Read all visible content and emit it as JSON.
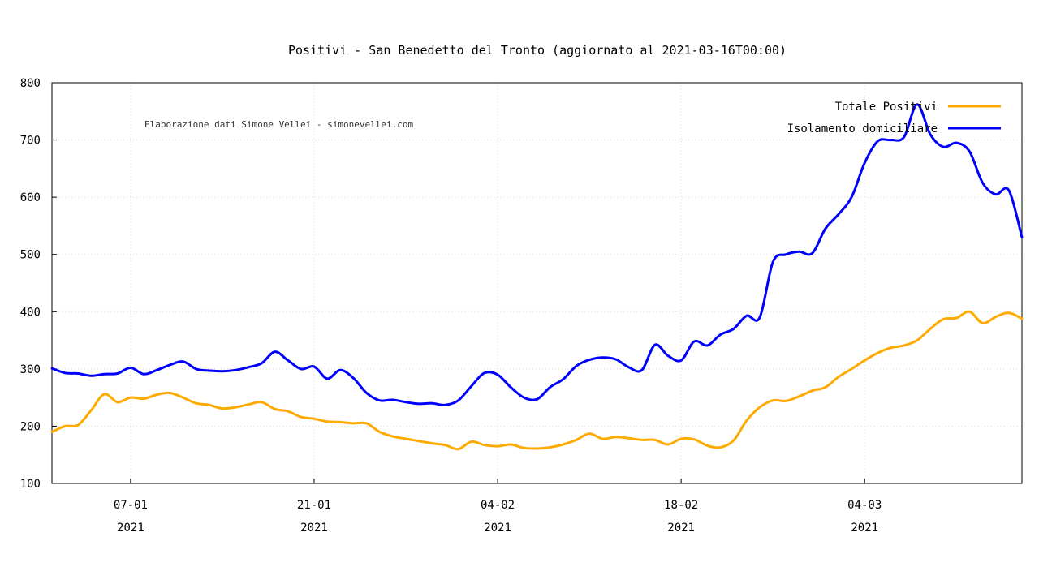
{
  "chart_data": {
    "type": "line",
    "title": "Positivi - San Benedetto del Tronto (aggiornato al 2021-03-16T00:00)",
    "credit": "Elaborazione dati Simone Vellei - simonevellei.com",
    "xlabel": "",
    "ylabel": "",
    "x_start": "2021-01-01",
    "x_end": "2021-03-16",
    "ylim": [
      100,
      800
    ],
    "yticks": [
      100,
      200,
      300,
      400,
      500,
      600,
      700,
      800
    ],
    "xticks": [
      {
        "date": "2021-01-07",
        "label": "07-01",
        "year": "2021"
      },
      {
        "date": "2021-01-21",
        "label": "21-01",
        "year": "2021"
      },
      {
        "date": "2021-02-04",
        "label": "04-02",
        "year": "2021"
      },
      {
        "date": "2021-02-18",
        "label": "18-02",
        "year": "2021"
      },
      {
        "date": "2021-03-04",
        "label": "04-03",
        "year": "2021"
      }
    ],
    "grid": true,
    "legend_position": "top-right",
    "series": [
      {
        "name": "Totale Positivi",
        "color": "#ffaa00",
        "points": [
          [
            "2021-01-01",
            190
          ],
          [
            "2021-01-02",
            200
          ],
          [
            "2021-01-03",
            202
          ],
          [
            "2021-01-04",
            228
          ],
          [
            "2021-01-05",
            256
          ],
          [
            "2021-01-06",
            242
          ],
          [
            "2021-01-07",
            250
          ],
          [
            "2021-01-08",
            248
          ],
          [
            "2021-01-09",
            255
          ],
          [
            "2021-01-10",
            258
          ],
          [
            "2021-01-11",
            250
          ],
          [
            "2021-01-12",
            240
          ],
          [
            "2021-01-13",
            237
          ],
          [
            "2021-01-14",
            231
          ],
          [
            "2021-01-15",
            233
          ],
          [
            "2021-01-16",
            238
          ],
          [
            "2021-01-17",
            242
          ],
          [
            "2021-01-18",
            230
          ],
          [
            "2021-01-19",
            226
          ],
          [
            "2021-01-20",
            216
          ],
          [
            "2021-01-21",
            213
          ],
          [
            "2021-01-22",
            208
          ],
          [
            "2021-01-23",
            207
          ],
          [
            "2021-01-24",
            205
          ],
          [
            "2021-01-25",
            205
          ],
          [
            "2021-01-26",
            190
          ],
          [
            "2021-01-27",
            182
          ],
          [
            "2021-01-28",
            178
          ],
          [
            "2021-01-29",
            174
          ],
          [
            "2021-01-30",
            170
          ],
          [
            "2021-01-31",
            167
          ],
          [
            "2021-02-01",
            160
          ],
          [
            "2021-02-02",
            173
          ],
          [
            "2021-02-03",
            167
          ],
          [
            "2021-02-04",
            165
          ],
          [
            "2021-02-05",
            168
          ],
          [
            "2021-02-06",
            162
          ],
          [
            "2021-02-07",
            161
          ],
          [
            "2021-02-08",
            163
          ],
          [
            "2021-02-09",
            168
          ],
          [
            "2021-02-10",
            176
          ],
          [
            "2021-02-11",
            187
          ],
          [
            "2021-02-12",
            178
          ],
          [
            "2021-02-13",
            181
          ],
          [
            "2021-02-14",
            179
          ],
          [
            "2021-02-15",
            176
          ],
          [
            "2021-02-16",
            176
          ],
          [
            "2021-02-17",
            168
          ],
          [
            "2021-02-18",
            178
          ],
          [
            "2021-02-19",
            177
          ],
          [
            "2021-02-20",
            166
          ],
          [
            "2021-02-21",
            163
          ],
          [
            "2021-02-22",
            175
          ],
          [
            "2021-02-23",
            210
          ],
          [
            "2021-02-24",
            233
          ],
          [
            "2021-02-25",
            245
          ],
          [
            "2021-02-26",
            244
          ],
          [
            "2021-02-27",
            252
          ],
          [
            "2021-02-28",
            262
          ],
          [
            "2021-03-01",
            268
          ],
          [
            "2021-03-02",
            286
          ],
          [
            "2021-03-03",
            300
          ],
          [
            "2021-03-04",
            315
          ],
          [
            "2021-03-05",
            328
          ],
          [
            "2021-03-06",
            337
          ],
          [
            "2021-03-07",
            341
          ],
          [
            "2021-03-08",
            350
          ],
          [
            "2021-03-09",
            370
          ],
          [
            "2021-03-10",
            387
          ],
          [
            "2021-03-11",
            389
          ],
          [
            "2021-03-12",
            400
          ],
          [
            "2021-03-13",
            380
          ],
          [
            "2021-03-14",
            391
          ],
          [
            "2021-03-15",
            398
          ],
          [
            "2021-03-16",
            388
          ]
        ]
      },
      {
        "name": "Isolamento domiciliare",
        "color": "#0000ff",
        "points": [
          [
            "2021-01-01",
            301
          ],
          [
            "2021-01-02",
            293
          ],
          [
            "2021-01-03",
            292
          ],
          [
            "2021-01-04",
            288
          ],
          [
            "2021-01-05",
            291
          ],
          [
            "2021-01-06",
            292
          ],
          [
            "2021-01-07",
            302
          ],
          [
            "2021-01-08",
            291
          ],
          [
            "2021-01-09",
            298
          ],
          [
            "2021-01-10",
            307
          ],
          [
            "2021-01-11",
            313
          ],
          [
            "2021-01-12",
            300
          ],
          [
            "2021-01-13",
            297
          ],
          [
            "2021-01-14",
            296
          ],
          [
            "2021-01-15",
            298
          ],
          [
            "2021-01-16",
            303
          ],
          [
            "2021-01-17",
            310
          ],
          [
            "2021-01-18",
            330
          ],
          [
            "2021-01-19",
            315
          ],
          [
            "2021-01-20",
            300
          ],
          [
            "2021-01-21",
            304
          ],
          [
            "2021-01-22",
            283
          ],
          [
            "2021-01-23",
            298
          ],
          [
            "2021-01-24",
            284
          ],
          [
            "2021-01-25",
            258
          ],
          [
            "2021-01-26",
            245
          ],
          [
            "2021-01-27",
            246
          ],
          [
            "2021-01-28",
            242
          ],
          [
            "2021-01-29",
            239
          ],
          [
            "2021-01-30",
            240
          ],
          [
            "2021-01-31",
            237
          ],
          [
            "2021-02-01",
            245
          ],
          [
            "2021-02-02",
            270
          ],
          [
            "2021-02-03",
            293
          ],
          [
            "2021-02-04",
            290
          ],
          [
            "2021-02-05",
            268
          ],
          [
            "2021-02-06",
            250
          ],
          [
            "2021-02-07",
            247
          ],
          [
            "2021-02-08",
            268
          ],
          [
            "2021-02-09",
            282
          ],
          [
            "2021-02-10",
            305
          ],
          [
            "2021-02-11",
            316
          ],
          [
            "2021-02-12",
            320
          ],
          [
            "2021-02-13",
            317
          ],
          [
            "2021-02-14",
            303
          ],
          [
            "2021-02-15",
            298
          ],
          [
            "2021-02-16",
            342
          ],
          [
            "2021-02-17",
            323
          ],
          [
            "2021-02-18",
            315
          ],
          [
            "2021-02-19",
            348
          ],
          [
            "2021-02-20",
            341
          ],
          [
            "2021-02-21",
            360
          ],
          [
            "2021-02-22",
            370
          ],
          [
            "2021-02-23",
            393
          ],
          [
            "2021-02-24",
            390
          ],
          [
            "2021-02-25",
            487
          ],
          [
            "2021-02-26",
            500
          ],
          [
            "2021-02-27",
            505
          ],
          [
            "2021-02-28",
            502
          ],
          [
            "2021-03-01",
            545
          ],
          [
            "2021-03-02",
            570
          ],
          [
            "2021-03-03",
            600
          ],
          [
            "2021-03-04",
            660
          ],
          [
            "2021-03-05",
            698
          ],
          [
            "2021-03-06",
            700
          ],
          [
            "2021-03-07",
            705
          ],
          [
            "2021-03-08",
            762
          ],
          [
            "2021-03-09",
            710
          ],
          [
            "2021-03-10",
            688
          ],
          [
            "2021-03-11",
            695
          ],
          [
            "2021-03-12",
            680
          ],
          [
            "2021-03-13",
            625
          ],
          [
            "2021-03-14",
            605
          ],
          [
            "2021-03-15",
            612
          ],
          [
            "2021-03-16",
            530
          ]
        ]
      }
    ]
  }
}
